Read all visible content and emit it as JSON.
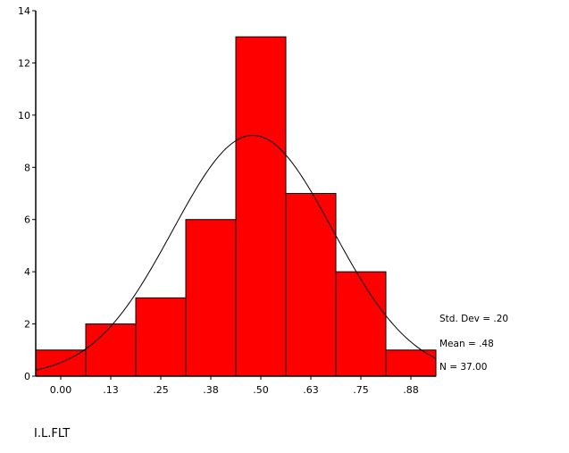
{
  "chart_data": {
    "type": "bar",
    "subtype": "histogram",
    "title": "",
    "xlabel": "I.L.FLT",
    "ylabel": "",
    "categories": [
      "0.00",
      ".13",
      ".25",
      ".38",
      ".50",
      ".63",
      ".75",
      ".88"
    ],
    "values": [
      1,
      2,
      3,
      6,
      13,
      7,
      4,
      1
    ],
    "bin_width": 0.125,
    "ylim": [
      0,
      14
    ],
    "yticks": [
      "0",
      "2",
      "4",
      "6",
      "8",
      "10",
      "12",
      "14"
    ],
    "grid": false,
    "bar_color": "#ff0000",
    "normal_curve": {
      "mean": 0.48,
      "std_dev": 0.2,
      "n": 37
    },
    "stats_labels": [
      "Std. Dev = .20",
      "Mean = .48",
      "N = 37.00"
    ]
  }
}
